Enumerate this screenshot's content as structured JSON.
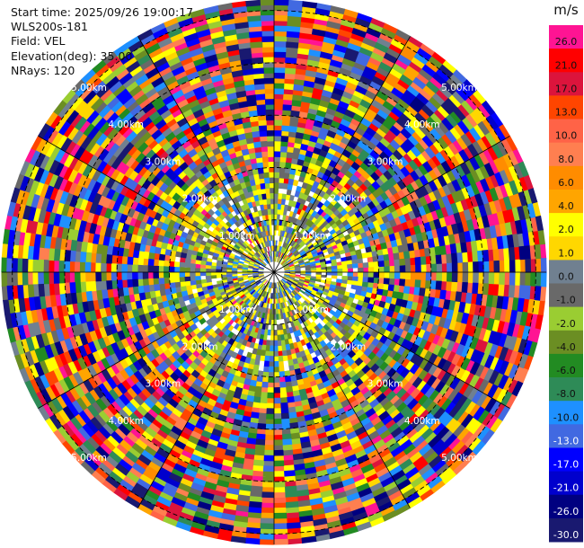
{
  "info": {
    "start_time": "Start time: 2025/09/26 19:00:17",
    "instrument": "WLS200s-181",
    "field": "Field: VEL",
    "elevation": "Elevation(deg): 35.00",
    "nrays": "NRays: 120"
  },
  "colorbar": {
    "unit": "m/s",
    "ticks": [
      "26.0",
      "21.0",
      "17.0",
      "13.0",
      "10.0",
      "8.0",
      "6.0",
      "4.0",
      "2.0",
      "1.0",
      "0.0",
      "-1.0",
      "-2.0",
      "-4.0",
      "-6.0",
      "-8.0",
      "-10.0",
      "-13.0",
      "-17.0",
      "-21.0",
      "-26.0",
      "-30.0"
    ],
    "colors": [
      "#ff1493",
      "#ff0000",
      "#dc143c",
      "#ff4500",
      "#ff6347",
      "#ff7f50",
      "#ff8c00",
      "#ffa500",
      "#ffff00",
      "#ffd700",
      "#708090",
      "#696969",
      "#9acd32",
      "#6b8e23",
      "#228b22",
      "#2e8b57",
      "#1e90ff",
      "#4169e1",
      "#0000ff",
      "#0000cd",
      "#000080",
      "#191970"
    ]
  },
  "chart_data": {
    "type": "heatmap",
    "subtype": "polar-ppi",
    "field": "VEL",
    "units": "m/s",
    "nrays": 120,
    "range_rings_km": [
      1.0,
      2.0,
      3.0,
      4.0,
      5.0
    ],
    "range_label_texts": [
      "1.00km",
      "2.00km",
      "3.00km",
      "4.00km",
      "5.00km"
    ],
    "max_range_km": 5.2,
    "spoke_step_deg": 30,
    "value_range": [
      -30.0,
      26.0
    ]
  }
}
